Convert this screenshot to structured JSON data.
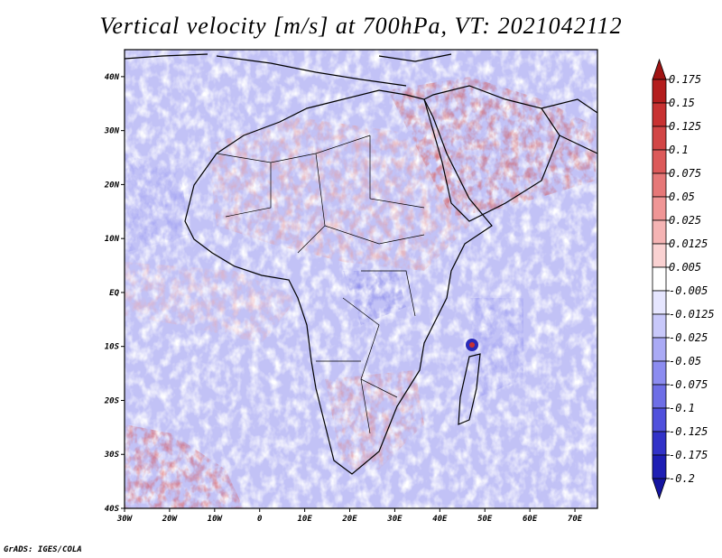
{
  "title": "Vertical velocity [m/s] at 700hPa, VT: 2021042112",
  "credit": "GrADS: IGES/COLA",
  "map": {
    "projection": "latlon",
    "lon_range": [
      -30,
      75
    ],
    "lat_range": [
      -40,
      45
    ],
    "x_tick_labels": [
      {
        "lon": -30,
        "label": "30W"
      },
      {
        "lon": -20,
        "label": "20W"
      },
      {
        "lon": -10,
        "label": "10W"
      },
      {
        "lon": 0,
        "label": "0"
      },
      {
        "lon": 10,
        "label": "10E"
      },
      {
        "lon": 20,
        "label": "20E"
      },
      {
        "lon": 30,
        "label": "30E"
      },
      {
        "lon": 40,
        "label": "40E"
      },
      {
        "lon": 50,
        "label": "50E"
      },
      {
        "lon": 60,
        "label": "60E"
      },
      {
        "lon": 70,
        "label": "70E"
      }
    ],
    "y_tick_labels": [
      {
        "lat": 40,
        "label": "40N"
      },
      {
        "lat": 30,
        "label": "30N"
      },
      {
        "lat": 20,
        "label": "20N"
      },
      {
        "lat": 10,
        "label": "10N"
      },
      {
        "lat": 0,
        "label": "EQ"
      },
      {
        "lat": -10,
        "label": "10S"
      },
      {
        "lat": -20,
        "label": "20S"
      },
      {
        "lat": -30,
        "label": "30S"
      },
      {
        "lat": -40,
        "label": "40S"
      }
    ]
  },
  "colorbar": {
    "labels": [
      "0.175",
      "0.15",
      "0.125",
      "0.1",
      "0.075",
      "0.05",
      "0.025",
      "0.0125",
      "0.005",
      "-0.005",
      "-0.0125",
      "-0.025",
      "-0.05",
      "-0.075",
      "-0.1",
      "-0.125",
      "-0.175",
      "-0.2"
    ],
    "colors": [
      "#b41e1e",
      "#c83232",
      "#d24646",
      "#dc5a5a",
      "#e67878",
      "#f09696",
      "#f5b4b4",
      "#fad2d2",
      "#ffffff",
      "#e6e6ff",
      "#c8c8fa",
      "#aaaaf5",
      "#8c8cf0",
      "#6e6ee6",
      "#5050dc",
      "#3232c8",
      "#1e1eb4"
    ],
    "top_color": "#a01414",
    "bottom_color": "#1414a0"
  }
}
